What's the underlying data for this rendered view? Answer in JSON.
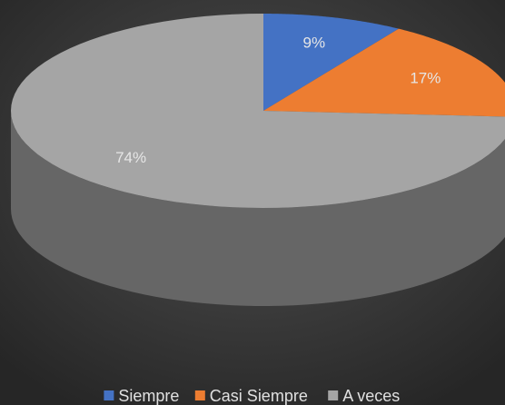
{
  "chart_data": {
    "type": "pie",
    "categories": [
      "Siempre",
      "Casi Siempre",
      "A veces"
    ],
    "values": [
      9,
      17,
      74
    ],
    "value_labels": [
      "9%",
      "17%",
      "74%"
    ],
    "colors": [
      "#4472c4",
      "#ed7d31",
      "#a5a5a5"
    ],
    "legend": "bottom"
  }
}
